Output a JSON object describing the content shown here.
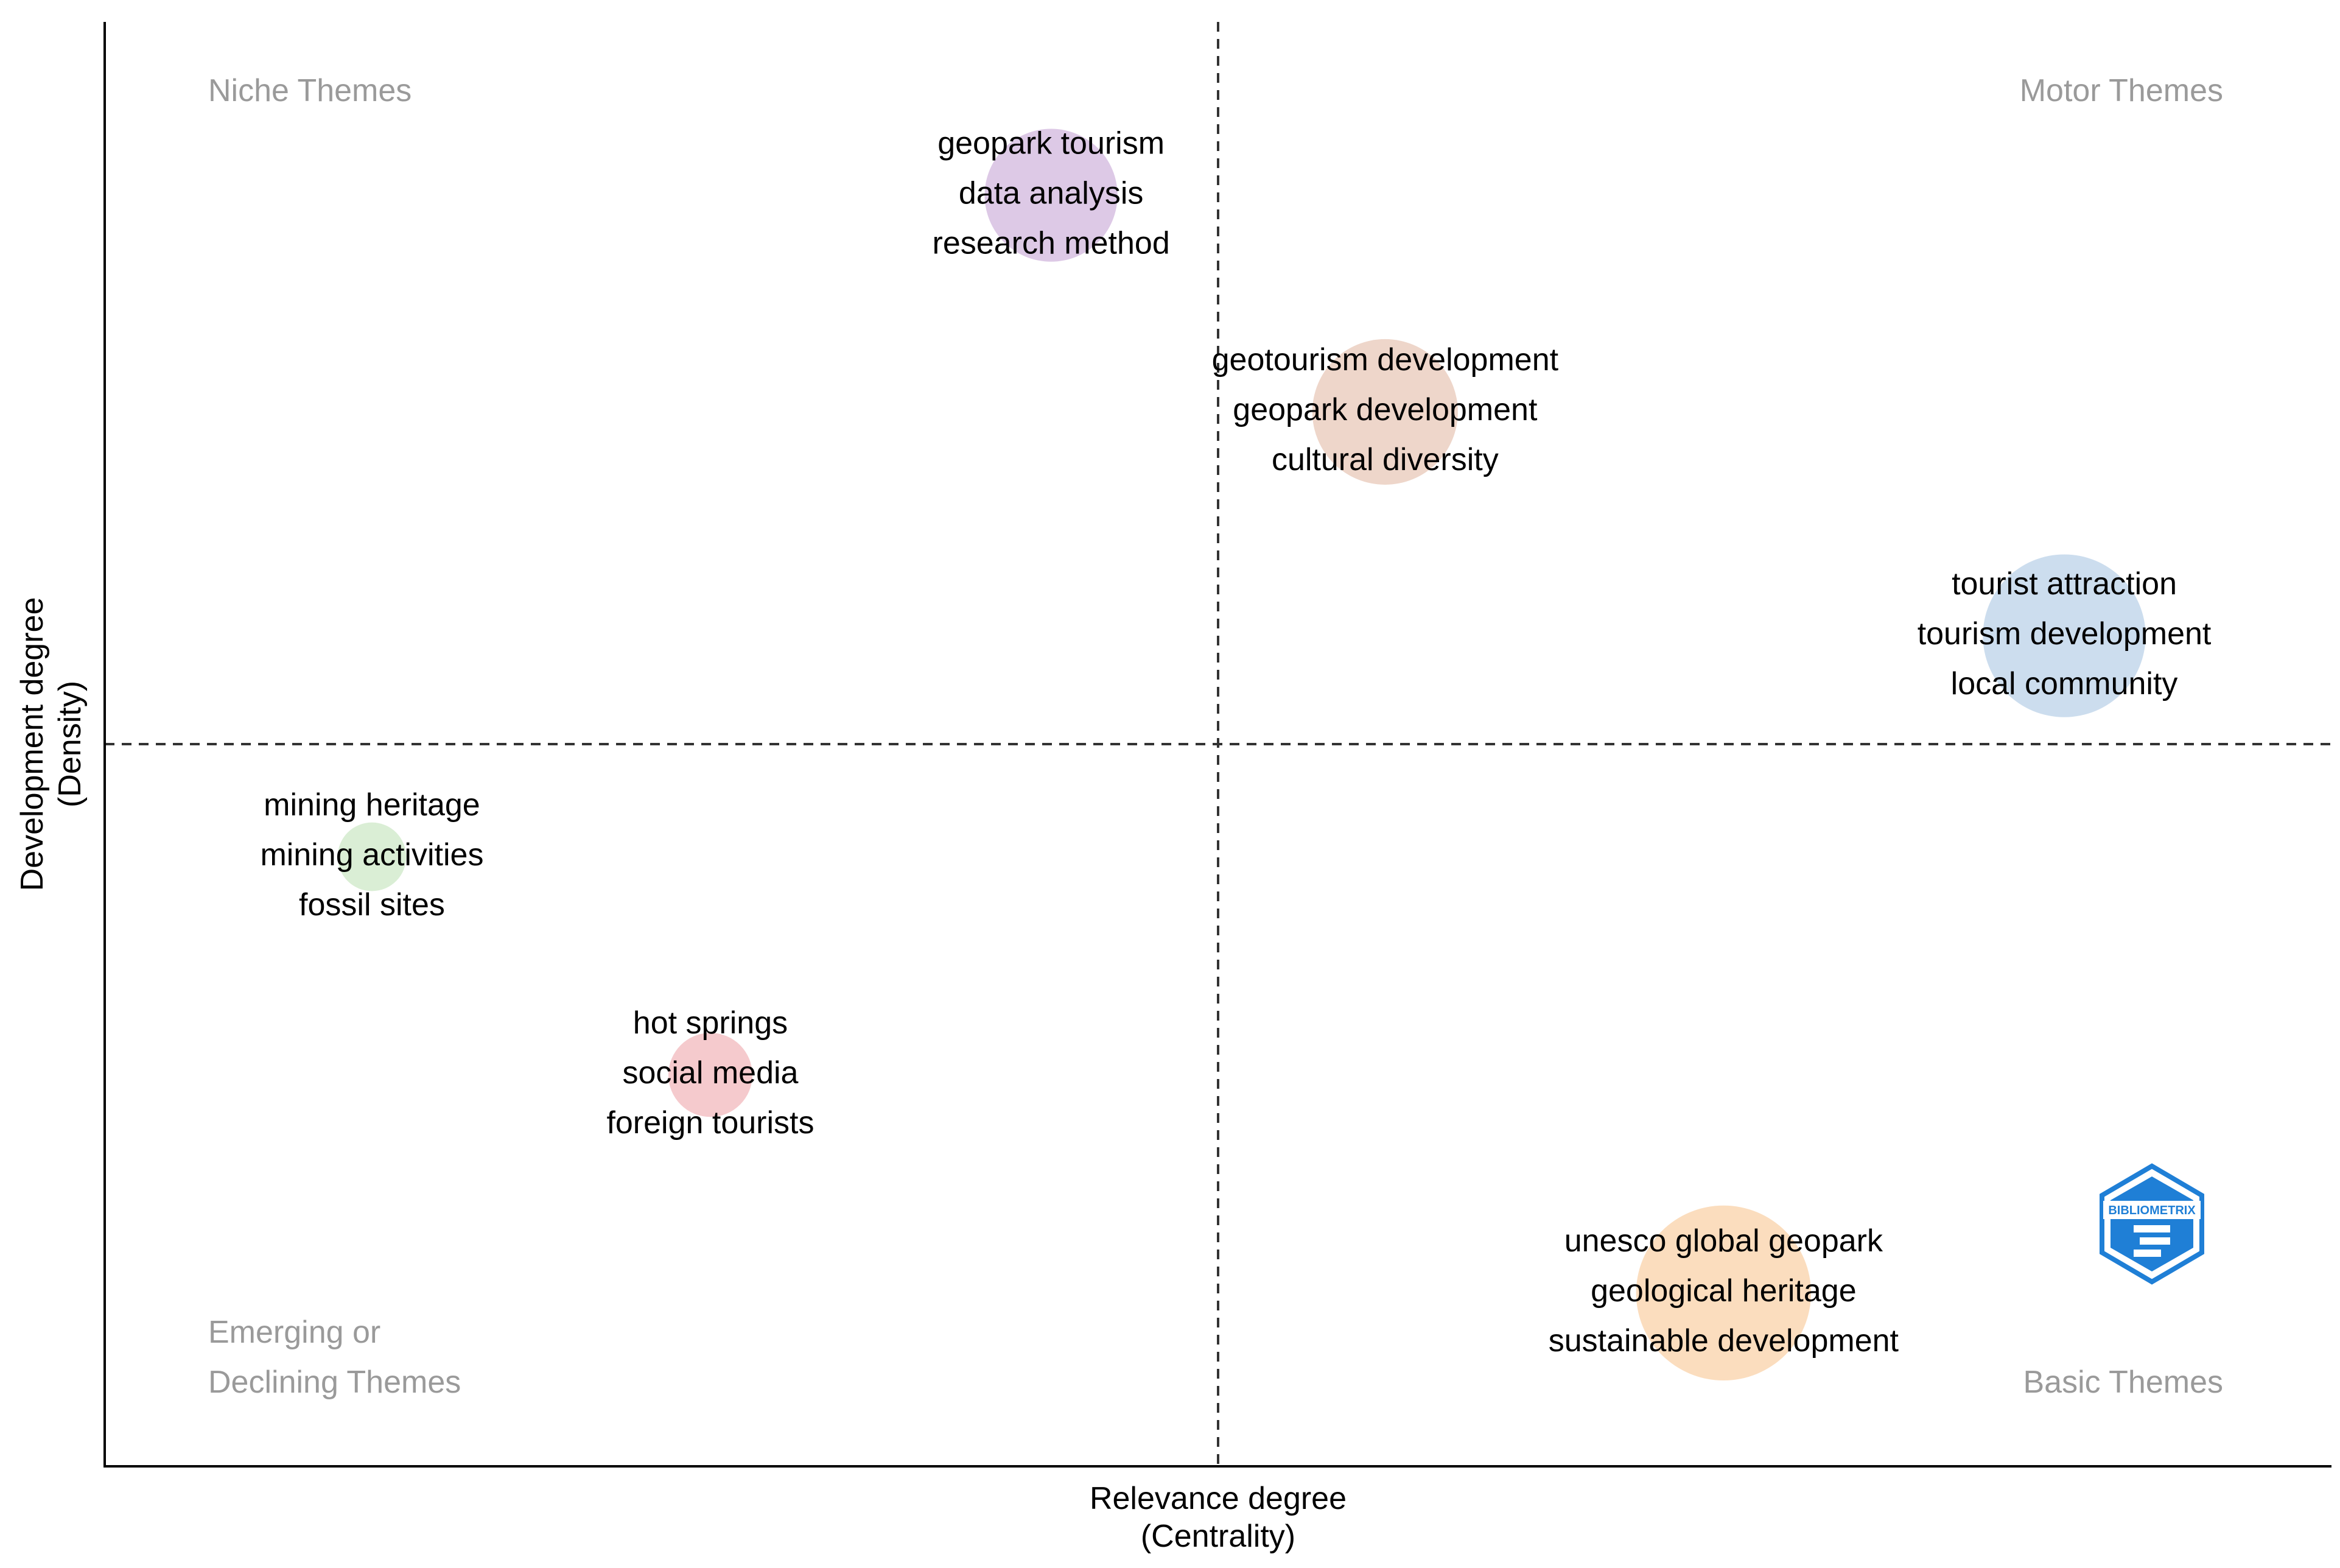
{
  "chart_data": {
    "type": "scatter",
    "title": "",
    "xlabel": [
      "Relevance degree",
      "(Centrality)"
    ],
    "ylabel": [
      "Development degree",
      "(Density)"
    ],
    "xlim": [
      0,
      1
    ],
    "ylim": [
      0,
      1
    ],
    "reference_lines": {
      "x": 0.5,
      "y": 0.5
    },
    "quadrants": [
      {
        "name": "niche",
        "lines": [
          "Niche Themes"
        ],
        "corner": "top-left"
      },
      {
        "name": "motor",
        "lines": [
          "Motor Themes"
        ],
        "corner": "top-right"
      },
      {
        "name": "emerging",
        "lines": [
          "Emerging or",
          "Declining Themes"
        ],
        "corner": "bottom-left"
      },
      {
        "name": "basic",
        "lines": [
          "Basic Themes"
        ],
        "corner": "bottom-right"
      }
    ],
    "clusters": [
      {
        "labels": [
          "geopark tourism",
          "data analysis",
          "research method"
        ],
        "x": 0.425,
        "y": 0.88,
        "size": 3,
        "color": "#d9c3e3"
      },
      {
        "labels": [
          "geotourism development",
          "geopark development",
          "cultural diversity"
        ],
        "x": 0.575,
        "y": 0.73,
        "size": 3.6,
        "color": "#ecd2c4"
      },
      {
        "labels": [
          "tourist attraction",
          "tourism development",
          "local community"
        ],
        "x": 0.88,
        "y": 0.575,
        "size": 4.5,
        "color": "#c6d9ec"
      },
      {
        "labels": [
          "mining heritage",
          "mining activities",
          "fossil sites"
        ],
        "x": 0.12,
        "y": 0.422,
        "size": 0.8,
        "color": "#d6ecd0"
      },
      {
        "labels": [
          "hot springs",
          "social media",
          "foreign tourists"
        ],
        "x": 0.272,
        "y": 0.271,
        "size": 1.2,
        "color": "#f4c4c8"
      },
      {
        "labels": [
          "unesco global geopark",
          "geological heritage",
          "sustainable development"
        ],
        "x": 0.727,
        "y": 0.12,
        "size": 5.2,
        "color": "#fbd9b7"
      }
    ]
  },
  "logo": {
    "text": "BIBLIOMETRIX",
    "color": "#1f7fd6"
  }
}
